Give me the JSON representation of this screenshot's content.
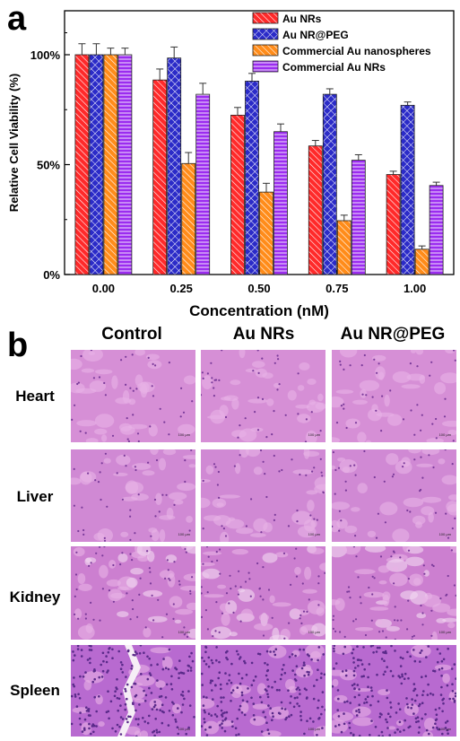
{
  "panel_a_letter": "a",
  "panel_b_letter": "b",
  "chart_data": {
    "type": "bar",
    "xlabel": "Concentration (nM)",
    "ylabel": "Relative Cell Viability (%)",
    "categories": [
      "0.00",
      "0.25",
      "0.50",
      "0.75",
      "1.00"
    ],
    "yticks": [
      "0%",
      "50%",
      "100%"
    ],
    "ytick_values": [
      0,
      50,
      100
    ],
    "ylim": [
      0,
      120
    ],
    "legend_position": "top-right",
    "grid": false,
    "series": [
      {
        "name": "Au NRs",
        "values": [
          100,
          88.5,
          72.5,
          58.5,
          45.5
        ],
        "errors": [
          5,
          5,
          3.5,
          2.5,
          1.5
        ],
        "color": "#ff2a2a",
        "pattern": "diagonal-lines"
      },
      {
        "name": "Au NR@PEG",
        "values": [
          100,
          98.5,
          88,
          82,
          77
        ],
        "errors": [
          5,
          5,
          3.5,
          2.5,
          1.5
        ],
        "color": "#2b2bc8",
        "pattern": "cross-hatch"
      },
      {
        "name": "Commercial Au nanospheres",
        "values": [
          100,
          50.5,
          37.5,
          24.5,
          11.5
        ],
        "errors": [
          3,
          5,
          4,
          2.5,
          1.5
        ],
        "color": "#ff8c1a",
        "pattern": "diagonal-lines"
      },
      {
        "name": "Commercial Au NRs",
        "values": [
          100,
          82,
          65,
          52,
          40.5
        ],
        "errors": [
          3,
          5,
          3.5,
          2.5,
          1.5
        ],
        "color": "#9b2cf0",
        "pattern": "horizontal-lines"
      }
    ]
  },
  "histology": {
    "columns": [
      "Control",
      "Au NRs",
      "Au NR@PEG"
    ],
    "rows": [
      "Heart",
      "Liver",
      "Kidney",
      "Spleen"
    ],
    "scale_text": "100 μm"
  }
}
